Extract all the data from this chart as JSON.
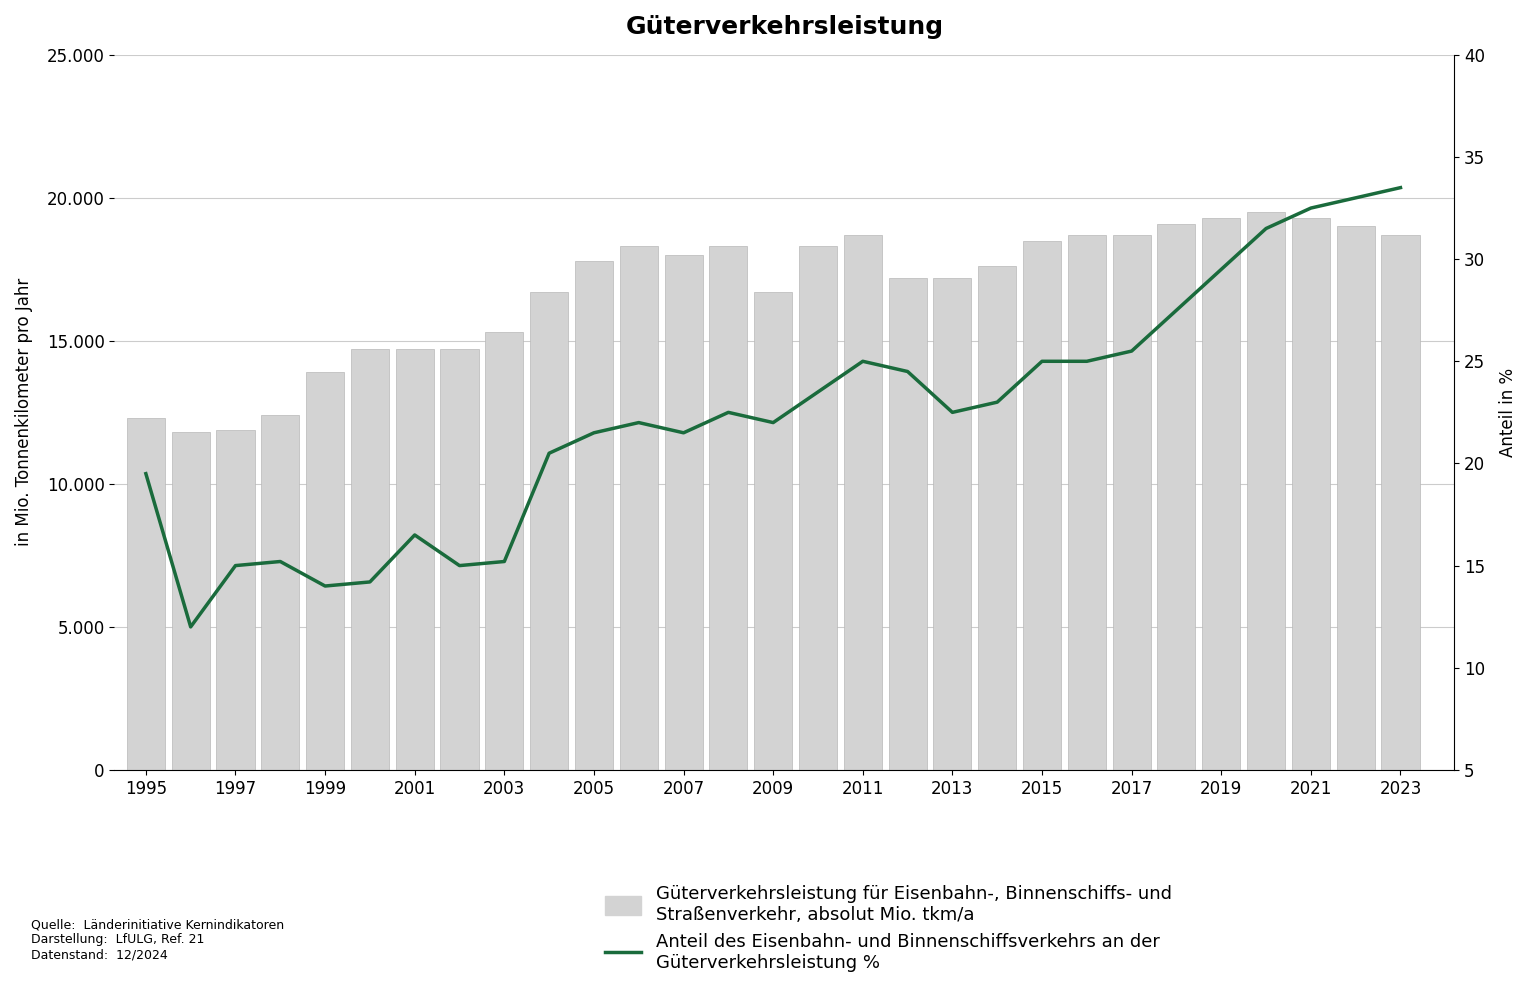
{
  "title": "Güterverkehrsleistung",
  "years": [
    1995,
    1996,
    1997,
    1998,
    1999,
    2000,
    2001,
    2002,
    2003,
    2004,
    2005,
    2006,
    2007,
    2008,
    2009,
    2010,
    2011,
    2012,
    2013,
    2014,
    2015,
    2016,
    2017,
    2018,
    2019,
    2020,
    2021,
    2022,
    2023
  ],
  "bar_values": [
    12300,
    11800,
    11900,
    12400,
    13900,
    14700,
    14700,
    14700,
    15300,
    16700,
    17800,
    18300,
    18000,
    18300,
    16700,
    18300,
    18700,
    17200,
    17200,
    17600,
    18500,
    18700,
    18700,
    19100,
    19300,
    19500,
    19300,
    19000,
    18700
  ],
  "line_years": [
    1995,
    1996,
    1997,
    1998,
    1999,
    2000,
    2001,
    2002,
    2003,
    2004,
    2005,
    2006,
    2007,
    2008,
    2009,
    2010,
    2011,
    2012,
    2013,
    2014,
    2015,
    2016,
    2017,
    2018,
    2019,
    2020,
    2021,
    2022,
    2023
  ],
  "line_values": [
    19.5,
    12.0,
    15.0,
    15.2,
    14.0,
    14.2,
    16.5,
    15.0,
    15.2,
    20.5,
    21.5,
    22.0,
    21.5,
    22.5,
    22.0,
    23.5,
    25.0,
    24.5,
    22.5,
    23.0,
    25.0,
    25.0,
    25.5,
    27.5,
    29.5,
    31.5,
    32.5,
    33.0,
    33.5
  ],
  "bar_color": "#d3d3d3",
  "bar_edgecolor": "#b8b8b8",
  "line_color": "#1a6b3c",
  "left_ylabel": "in Mio. Tonnenkilometer pro Jahr",
  "right_ylabel": "Anteil in %",
  "ylim_left": [
    0,
    25000
  ],
  "ylim_right": [
    5,
    40
  ],
  "yticks_left": [
    0,
    5000,
    10000,
    15000,
    20000,
    25000
  ],
  "yticks_right": [
    5,
    10,
    15,
    20,
    25,
    30,
    35,
    40
  ],
  "xtick_years": [
    1995,
    1997,
    1999,
    2001,
    2003,
    2005,
    2007,
    2009,
    2011,
    2013,
    2015,
    2017,
    2019,
    2021,
    2023
  ],
  "xtick_labels": [
    "1995",
    "1997",
    "1999",
    "2001",
    "2003",
    "2005",
    "2007",
    "2009",
    "2011",
    "2013",
    "2015",
    "2017",
    "2019",
    "2021",
    "2023"
  ],
  "legend_bar_label": "Güterverkehrsleistung für Eisenbahn-, Binnenschiffs- und\nStraßenverkehr, absolut Mio. tkm/a",
  "legend_line_label": "Anteil des Eisenbahn- und Binnenschiffsverkehrs an der\nGüterverkehrsleistung %",
  "source_text": "Quelle:  Länderinitiative Kernindikatoren\nDarstellung:  LfULG, Ref. 21\nDatenstand:  12/2024",
  "background_color": "#ffffff",
  "grid_color": "#cccccc",
  "title_fontsize": 18,
  "axis_label_fontsize": 12,
  "tick_fontsize": 12,
  "legend_fontsize": 13,
  "source_fontsize": 9,
  "xlim": [
    1994.3,
    2024.2
  ]
}
